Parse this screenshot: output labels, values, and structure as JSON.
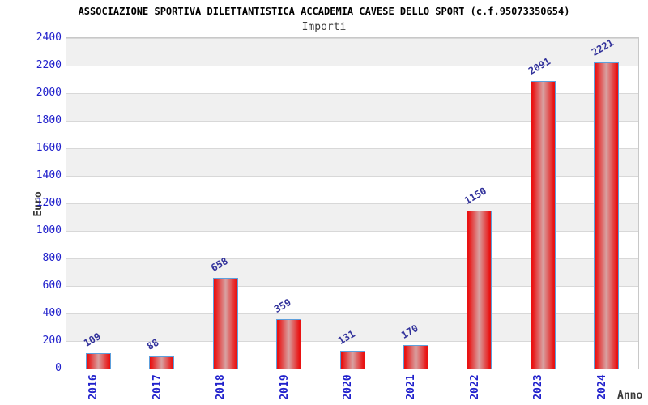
{
  "chart_data": {
    "type": "bar",
    "title": "ASSOCIAZIONE SPORTIVA DILETTANTISTICA ACCADEMIA CAVESE DELLO SPORT (c.f.95073350654)",
    "subtitle": "Importi",
    "xlabel": "Anno",
    "ylabel": "Euro",
    "categories": [
      "2016",
      "2017",
      "2018",
      "2019",
      "2020",
      "2021",
      "2022",
      "2023",
      "2024"
    ],
    "values": [
      109,
      88,
      658,
      359,
      131,
      170,
      1150,
      2091,
      2221
    ],
    "ylim": [
      0,
      2400
    ],
    "ytick_step": 200,
    "grid": true,
    "legend_position": "none",
    "colors": {
      "bar_edge_red": "#e91212",
      "bar_center_fade": "#d8a2a2",
      "bar_border_blue": "#5d9fdc",
      "axis_tick_label_blue": "#2121cc",
      "value_label_navy": "#32329b",
      "band_gray": "#f0f0f0",
      "grid_line_gray": "#d8d8d8",
      "plot_border_gray": "#c8c8c8",
      "title_black": "#000000",
      "subtitle_gray": "#3c3c3c",
      "axis_name_dark": "#3a3a3a"
    }
  }
}
